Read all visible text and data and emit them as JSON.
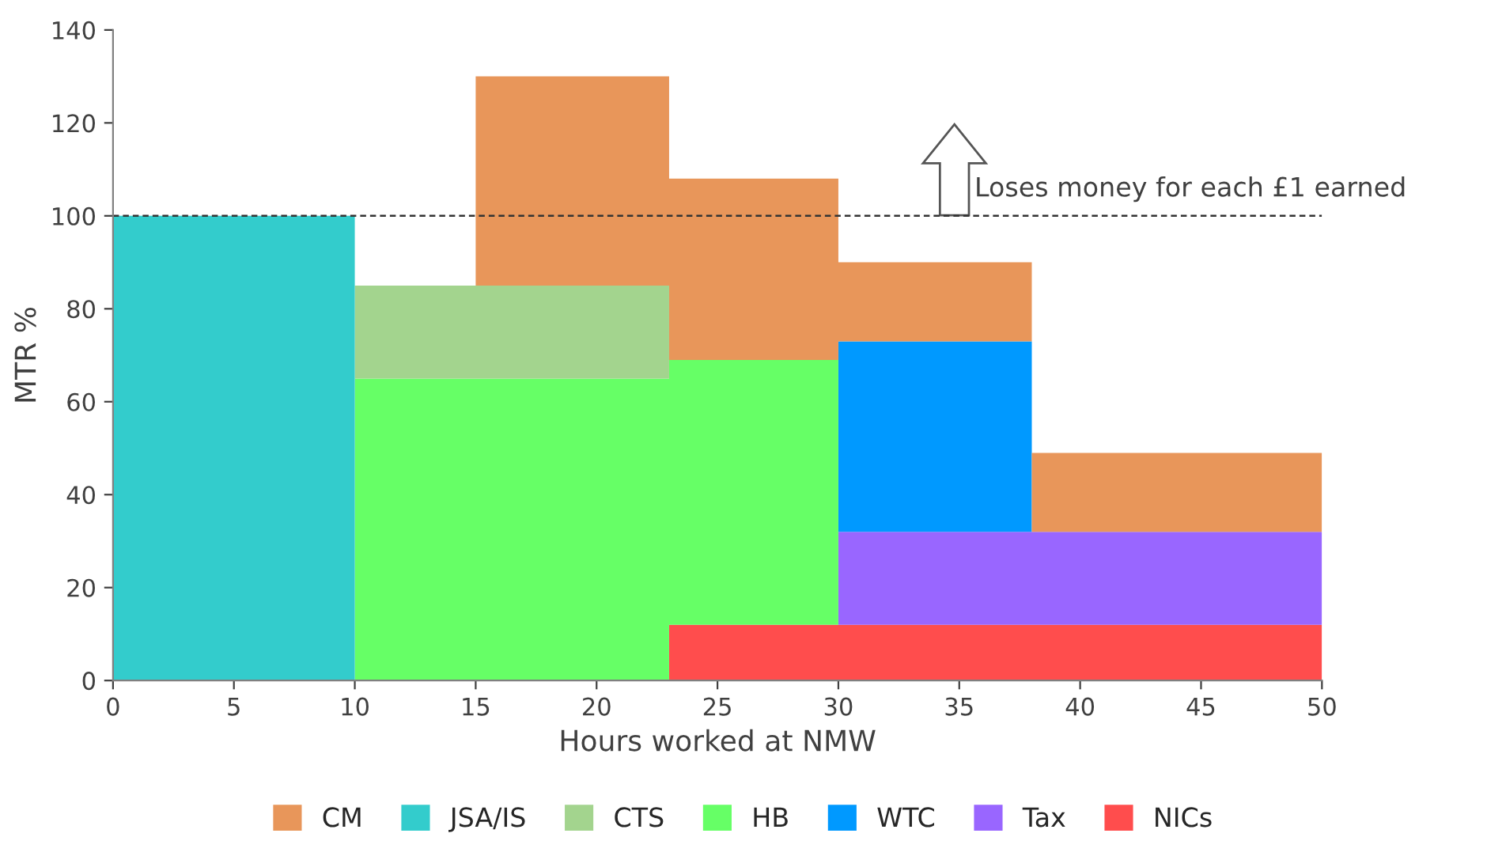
{
  "chart_data": {
    "type": "area",
    "stacked": true,
    "xlabel": "Hours worked at NMW",
    "ylabel": "MTR %",
    "x": [
      0,
      10,
      10,
      15,
      15,
      23,
      23,
      30,
      30,
      38,
      38,
      50
    ],
    "series": [
      {
        "name": "NICs",
        "color": "#ff4d4d",
        "values": [
          null,
          null,
          null,
          null,
          null,
          null,
          12,
          12,
          12,
          12,
          12,
          12
        ]
      },
      {
        "name": "Tax",
        "color": "#9966ff",
        "values": [
          null,
          null,
          null,
          null,
          null,
          null,
          null,
          null,
          20,
          20,
          20,
          20
        ]
      },
      {
        "name": "WTC",
        "color": "#0099ff",
        "values": [
          null,
          null,
          null,
          null,
          null,
          null,
          null,
          null,
          41,
          41,
          null,
          null
        ]
      },
      {
        "name": "HB",
        "color": "#66ff66",
        "values": [
          null,
          null,
          65,
          65,
          65,
          65,
          57,
          57,
          null,
          null,
          null,
          null
        ]
      },
      {
        "name": "CTS",
        "color": "#a3d48e",
        "values": [
          null,
          null,
          20,
          20,
          20,
          20,
          null,
          null,
          null,
          null,
          null,
          null
        ]
      },
      {
        "name": "JSA/IS",
        "color": "#33cccc",
        "values": [
          100,
          100,
          null,
          null,
          null,
          null,
          null,
          null,
          null,
          null,
          null,
          null
        ]
      },
      {
        "name": "CM",
        "color": "#e8965a",
        "values": [
          null,
          null,
          null,
          null,
          45,
          45,
          39,
          39,
          17,
          17,
          17,
          17
        ]
      }
    ],
    "xlim": [
      0,
      50
    ],
    "xticks": [
      0,
      5,
      10,
      15,
      20,
      25,
      30,
      35,
      40,
      45,
      50
    ],
    "ylim": [
      0,
      140
    ],
    "yticks": [
      0,
      20,
      40,
      60,
      80,
      100,
      120,
      140
    ],
    "ref_lines": [
      {
        "axis": "y",
        "value": 100,
        "label": "Loses money for each £1 earned",
        "color": "#333333",
        "line_style": "dashed"
      }
    ],
    "grid": false,
    "legend": "bottom"
  }
}
